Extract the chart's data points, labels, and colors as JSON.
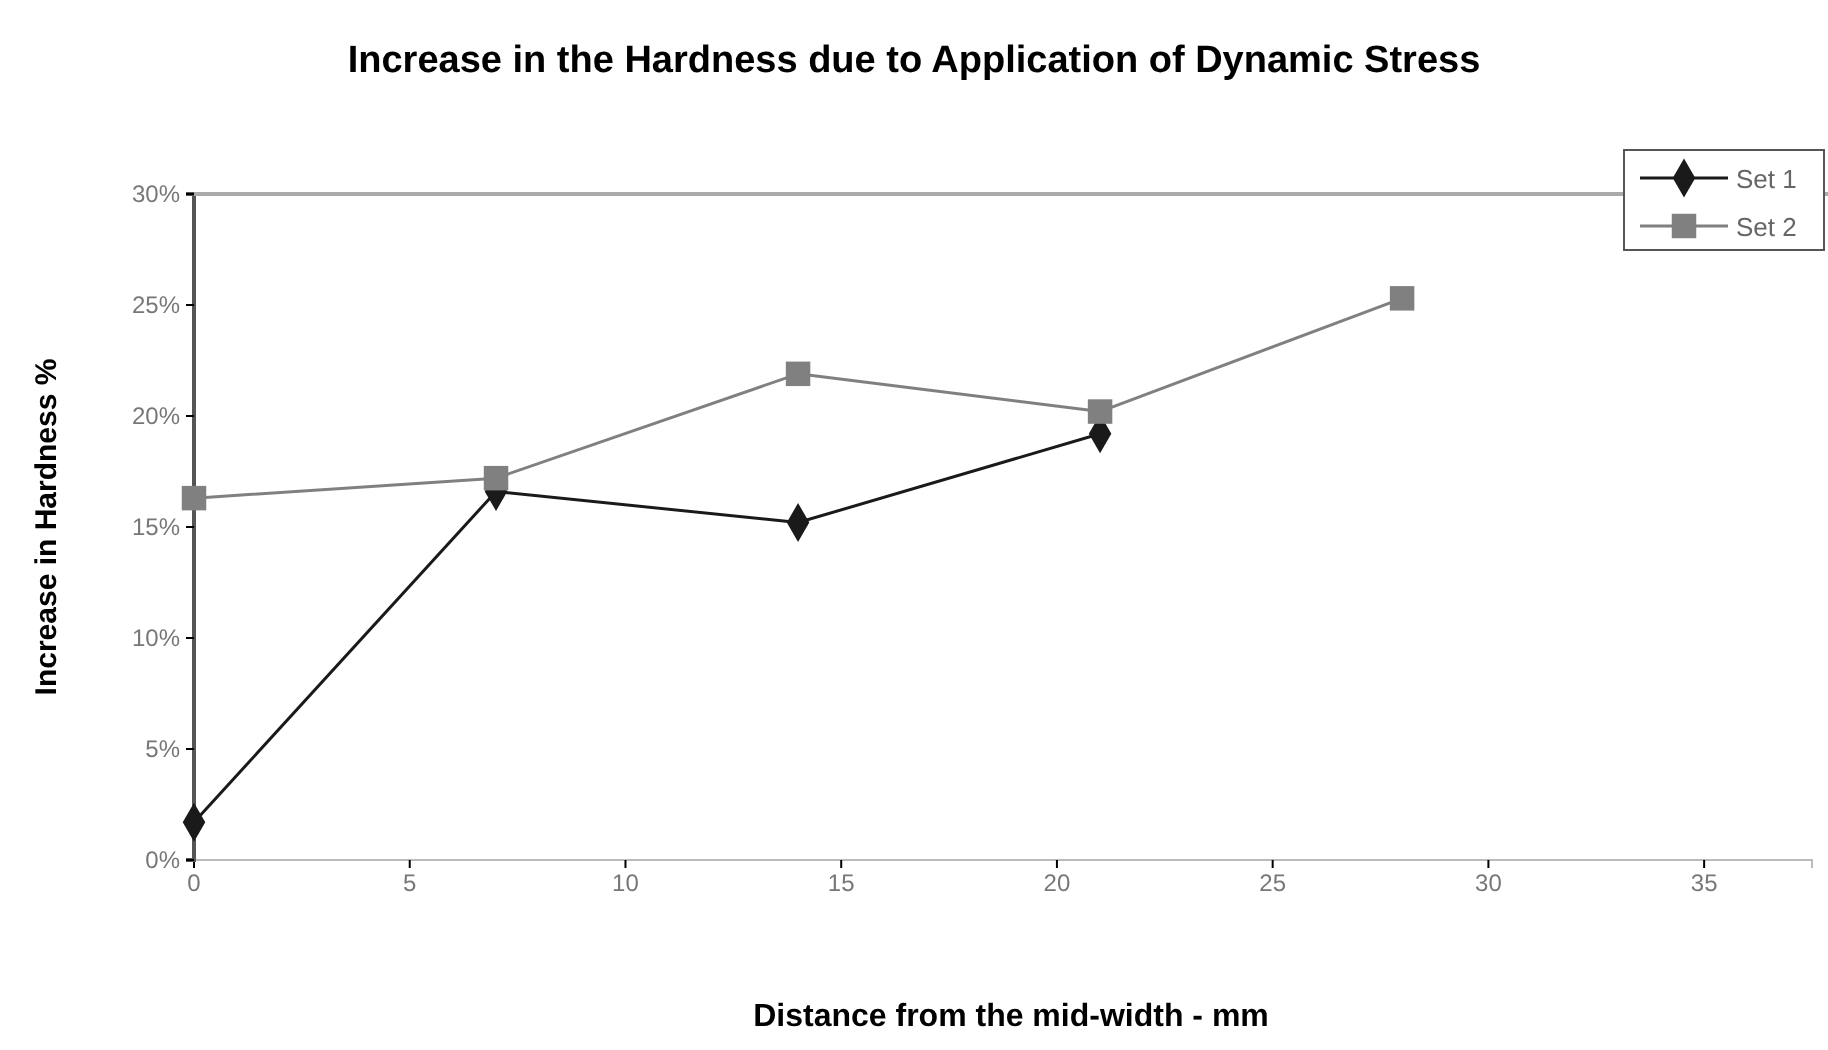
{
  "chart_data": {
    "type": "line",
    "title": "Increase in the Hardness due to Application of Dynamic Stress",
    "xlabel": "Distance from the mid-width - mm",
    "ylabel": "Increase in Hardness %",
    "x": [
      0,
      7,
      14,
      21,
      28
    ],
    "series": [
      {
        "name": "Set 1",
        "color": "#1a1a1a",
        "marker": "diamond",
        "values": [
          1.7,
          16.6,
          15.2,
          19.2,
          null
        ]
      },
      {
        "name": "Set 2",
        "color": "#808080",
        "marker": "square",
        "values": [
          16.3,
          17.2,
          21.9,
          20.2,
          25.3
        ]
      }
    ],
    "xlim": [
      0,
      37.5
    ],
    "xticks": [
      0,
      5,
      10,
      15,
      20,
      25,
      30,
      35
    ],
    "ylim": [
      0,
      30
    ],
    "yticks": [
      {
        "value": 0,
        "label": "0%"
      },
      {
        "value": 5,
        "label": "5%"
      },
      {
        "value": 10,
        "label": "10%"
      },
      {
        "value": 15,
        "label": "15%"
      },
      {
        "value": 20,
        "label": "20%"
      },
      {
        "value": 25,
        "label": "25%"
      },
      {
        "value": 30,
        "label": "30%"
      }
    ],
    "legend": "top right",
    "line_style": "solid"
  }
}
